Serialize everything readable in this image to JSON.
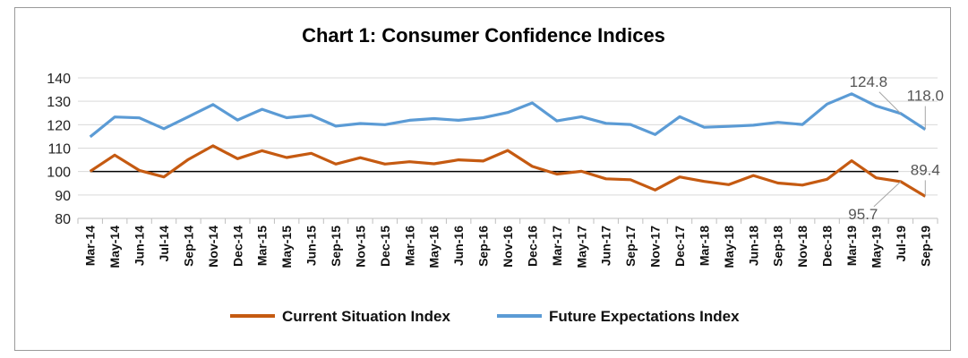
{
  "chart_data": {
    "type": "line",
    "title": "Chart 1: Consumer Confidence Indices",
    "xlabel": "",
    "ylabel": "",
    "ylim": [
      80,
      140
    ],
    "yticks": [
      80,
      90,
      100,
      110,
      120,
      130,
      140
    ],
    "grid": true,
    "legend": "bottom",
    "reference_line": 100,
    "categories": [
      "Mar-14",
      "May-14",
      "Jun-14",
      "Jul-14",
      "Sep-14",
      "Nov-14",
      "Dec-14",
      "Mar-15",
      "May-15",
      "Jun-15",
      "Sep-15",
      "Nov-15",
      "Dec-15",
      "Mar-16",
      "May-16",
      "Jun-16",
      "Sep-16",
      "Nov-16",
      "Dec-16",
      "Mar-17",
      "May-17",
      "Jun-17",
      "Sep-17",
      "Nov-17",
      "Dec-17",
      "Mar-18",
      "May-18",
      "Jun-18",
      "Sep-18",
      "Nov-18",
      "Dec-18",
      "Mar-19",
      "May-19",
      "Jul-19",
      "Sep-19"
    ],
    "series": [
      {
        "name": "Current Situation Index",
        "color": "#c55a11",
        "values": [
          100.1,
          107.0,
          100.5,
          97.7,
          105.2,
          111.0,
          105.5,
          108.9,
          106.0,
          107.8,
          103.2,
          105.9,
          103.2,
          104.2,
          103.3,
          105.0,
          104.5,
          109.0,
          102.2,
          98.9,
          100.1,
          96.9,
          96.5,
          92.1,
          97.7,
          95.8,
          94.4,
          98.3,
          95.1,
          94.2,
          96.7,
          104.6,
          97.3,
          95.7,
          89.4
        ]
      },
      {
        "name": "Future Expectations Index",
        "color": "#5b9bd5",
        "values": [
          114.8,
          123.3,
          122.9,
          118.3,
          123.4,
          128.6,
          122.0,
          126.6,
          123.0,
          124.0,
          119.4,
          120.5,
          120.0,
          121.9,
          122.6,
          121.9,
          123.0,
          125.2,
          129.3,
          121.6,
          123.4,
          120.6,
          120.1,
          115.8,
          123.4,
          118.9,
          119.3,
          119.8,
          121.0,
          120.1,
          128.8,
          133.2,
          128.0,
          124.8,
          118.0
        ]
      }
    ],
    "data_labels": [
      {
        "series": 1,
        "index": 33,
        "text": "124.8"
      },
      {
        "series": 1,
        "index": 34,
        "text": "118.0"
      },
      {
        "series": 0,
        "index": 33,
        "text": "95.7"
      },
      {
        "series": 0,
        "index": 34,
        "text": "89.4"
      }
    ]
  }
}
